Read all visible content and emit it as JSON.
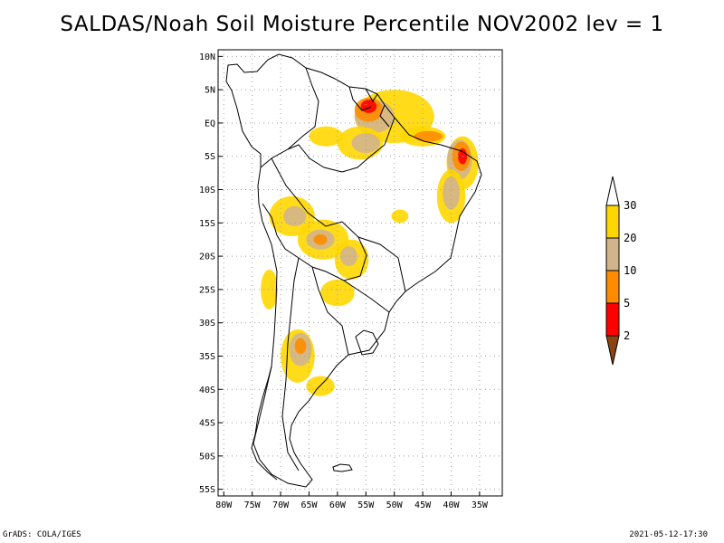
{
  "title": "SALDAS/Noah Soil Moisture Percentile NOV2002 lev = 1",
  "footer": {
    "left": "GrADS: COLA/IGES",
    "right": "2021-05-12-17:30"
  },
  "map": {
    "lat_range": [
      -56,
      11
    ],
    "lon_range": [
      -81,
      -31
    ],
    "lat_ticks": [
      {
        "value": 10,
        "label": "10N"
      },
      {
        "value": 5,
        "label": "5N"
      },
      {
        "value": 0,
        "label": "EQ"
      },
      {
        "value": -5,
        "label": "5S"
      },
      {
        "value": -10,
        "label": "10S"
      },
      {
        "value": -15,
        "label": "15S"
      },
      {
        "value": -20,
        "label": "20S"
      },
      {
        "value": -25,
        "label": "25S"
      },
      {
        "value": -30,
        "label": "30S"
      },
      {
        "value": -35,
        "label": "35S"
      },
      {
        "value": -40,
        "label": "40S"
      },
      {
        "value": -45,
        "label": "45S"
      },
      {
        "value": -50,
        "label": "50S"
      },
      {
        "value": -55,
        "label": "55S"
      }
    ],
    "lon_ticks": [
      {
        "value": -80,
        "label": "80W"
      },
      {
        "value": -75,
        "label": "75W"
      },
      {
        "value": -70,
        "label": "70W"
      },
      {
        "value": -65,
        "label": "65W"
      },
      {
        "value": -60,
        "label": "60W"
      },
      {
        "value": -55,
        "label": "55W"
      },
      {
        "value": -50,
        "label": "50W"
      },
      {
        "value": -45,
        "label": "45W"
      },
      {
        "value": -40,
        "label": "40W"
      },
      {
        "value": -35,
        "label": "35W"
      }
    ],
    "colors": {
      "frame": "#000000",
      "grid": "#a0a0a0",
      "coast": "#000000"
    },
    "patches": [
      {
        "category": "p20_30",
        "lon": -50,
        "lat": 1,
        "rx": 7,
        "ry": 4
      },
      {
        "category": "p10_20",
        "lon": -53.5,
        "lat": 1,
        "rx": 3.5,
        "ry": 2.5
      },
      {
        "category": "p5_10",
        "lon": -54.5,
        "lat": 2,
        "rx": 2.5,
        "ry": 1.8
      },
      {
        "category": "p2_5",
        "lon": -54.5,
        "lat": 2.5,
        "rx": 1.4,
        "ry": 1
      },
      {
        "category": "p20_30",
        "lon": -56,
        "lat": -3,
        "rx": 4,
        "ry": 2.5
      },
      {
        "category": "p10_20",
        "lon": -55,
        "lat": -3,
        "rx": 2.5,
        "ry": 1.5
      },
      {
        "category": "p20_30",
        "lon": -62,
        "lat": -2,
        "rx": 3,
        "ry": 1.5
      },
      {
        "category": "p20_30",
        "lon": -45,
        "lat": -2,
        "rx": 4,
        "ry": 1.5
      },
      {
        "category": "p5_10",
        "lon": -44,
        "lat": -2,
        "rx": 2.5,
        "ry": 0.8
      },
      {
        "category": "p20_30",
        "lon": -38,
        "lat": -6,
        "rx": 2.8,
        "ry": 4
      },
      {
        "category": "p10_20",
        "lon": -38.5,
        "lat": -5.5,
        "rx": 2.2,
        "ry": 3
      },
      {
        "category": "p5_10",
        "lon": -38.2,
        "lat": -5,
        "rx": 1.6,
        "ry": 2.2
      },
      {
        "category": "p2_5",
        "lon": -38,
        "lat": -5,
        "rx": 0.8,
        "ry": 1.2
      },
      {
        "category": "p20_30",
        "lon": -40,
        "lat": -11,
        "rx": 2.5,
        "ry": 4
      },
      {
        "category": "p10_20",
        "lon": -40,
        "lat": -10.5,
        "rx": 1.5,
        "ry": 2.5
      },
      {
        "category": "p20_30",
        "lon": -68,
        "lat": -14,
        "rx": 4,
        "ry": 3
      },
      {
        "category": "p10_20",
        "lon": -67.5,
        "lat": -14,
        "rx": 2,
        "ry": 1.5
      },
      {
        "category": "p20_30",
        "lon": -62.5,
        "lat": -17.5,
        "rx": 4.5,
        "ry": 3
      },
      {
        "category": "p10_20",
        "lon": -63,
        "lat": -17.5,
        "rx": 2.5,
        "ry": 1.5
      },
      {
        "category": "p5_10",
        "lon": -63,
        "lat": -17.5,
        "rx": 1.2,
        "ry": 0.8
      },
      {
        "category": "p20_30",
        "lon": -57.5,
        "lat": -20.5,
        "rx": 3,
        "ry": 3
      },
      {
        "category": "p10_20",
        "lon": -58,
        "lat": -20,
        "rx": 1.5,
        "ry": 1.5
      },
      {
        "category": "p20_30",
        "lon": -60,
        "lat": -25.5,
        "rx": 3,
        "ry": 2
      },
      {
        "category": "p20_30",
        "lon": -72,
        "lat": -25,
        "rx": 1.5,
        "ry": 3
      },
      {
        "category": "p20_30",
        "lon": -67,
        "lat": -35,
        "rx": 3,
        "ry": 4
      },
      {
        "category": "p10_20",
        "lon": -66.5,
        "lat": -34,
        "rx": 2,
        "ry": 2.5
      },
      {
        "category": "p5_10",
        "lon": -66.5,
        "lat": -33.5,
        "rx": 1,
        "ry": 1.2
      },
      {
        "category": "p20_30",
        "lon": -63,
        "lat": -39.5,
        "rx": 2.5,
        "ry": 1.5
      },
      {
        "category": "p20_30",
        "lon": -49,
        "lat": -14,
        "rx": 1.5,
        "ry": 1
      }
    ]
  },
  "legend": {
    "colors": {
      "below_2": "#8b4513",
      "p2_5": "#ff0000",
      "p5_10": "#ff8c00",
      "p10_20": "#d2b48c",
      "p20_30": "#ffd700",
      "above_30": "#ffffff"
    },
    "bands": [
      {
        "key": "above_30"
      },
      {
        "key": "p20_30"
      },
      {
        "key": "p10_20"
      },
      {
        "key": "p5_10"
      },
      {
        "key": "p2_5"
      },
      {
        "key": "below_2"
      }
    ],
    "labels": [
      "30",
      "20",
      "10",
      "5",
      "2"
    ]
  }
}
